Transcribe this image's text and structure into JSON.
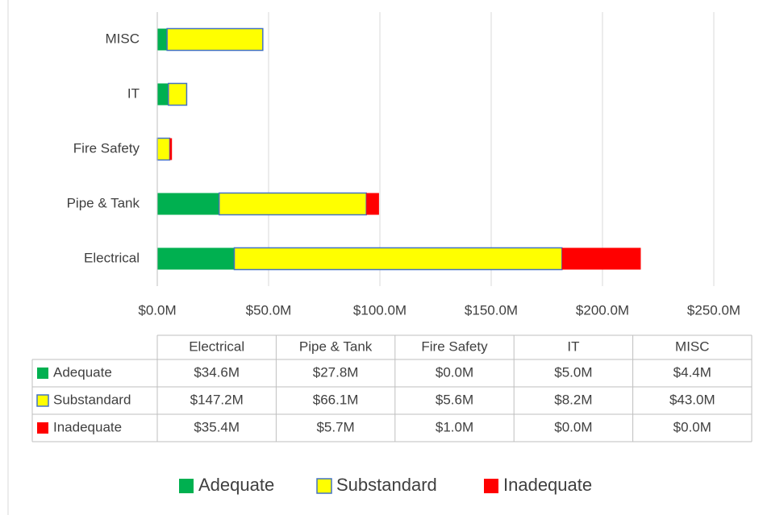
{
  "chart_data": {
    "type": "stacked_barh",
    "categories": [
      "Electrical",
      "Pipe & Tank",
      "Fire Safety",
      "IT",
      "MISC"
    ],
    "series": [
      {
        "name": "Adequate",
        "color": "#00b050",
        "values": [
          34.6,
          27.8,
          0.0,
          5.0,
          4.4
        ],
        "value_labels": [
          "$34.6M",
          "$27.8M",
          "$0.0M",
          "$5.0M",
          "$4.4M"
        ]
      },
      {
        "name": "Substandard",
        "color": "#ffff00",
        "edgecolor": "#4472c4",
        "values": [
          147.2,
          66.1,
          5.6,
          8.2,
          43.0
        ],
        "value_labels": [
          "$147.2M",
          "$66.1M",
          "$5.6M",
          "$8.2M",
          "$43.0M"
        ]
      },
      {
        "name": "Inadequate",
        "color": "#ff0000",
        "values": [
          35.4,
          5.7,
          1.0,
          0.0,
          0.0
        ],
        "value_labels": [
          "$35.4M",
          "$5.7M",
          "$1.0M",
          "$0.0M",
          "$0.0M"
        ]
      }
    ],
    "xlim": [
      0,
      250
    ],
    "xticks": [
      {
        "value": 0,
        "label": "$0.0M"
      },
      {
        "value": 50,
        "label": "$50.0M"
      },
      {
        "value": 100,
        "label": "$100.0M"
      },
      {
        "value": 150,
        "label": "$150.0M"
      },
      {
        "value": 200,
        "label": "$200.0M"
      },
      {
        "value": 250,
        "label": "$250.0M"
      }
    ],
    "grid": true,
    "data_table": true,
    "legend": "bottom"
  }
}
